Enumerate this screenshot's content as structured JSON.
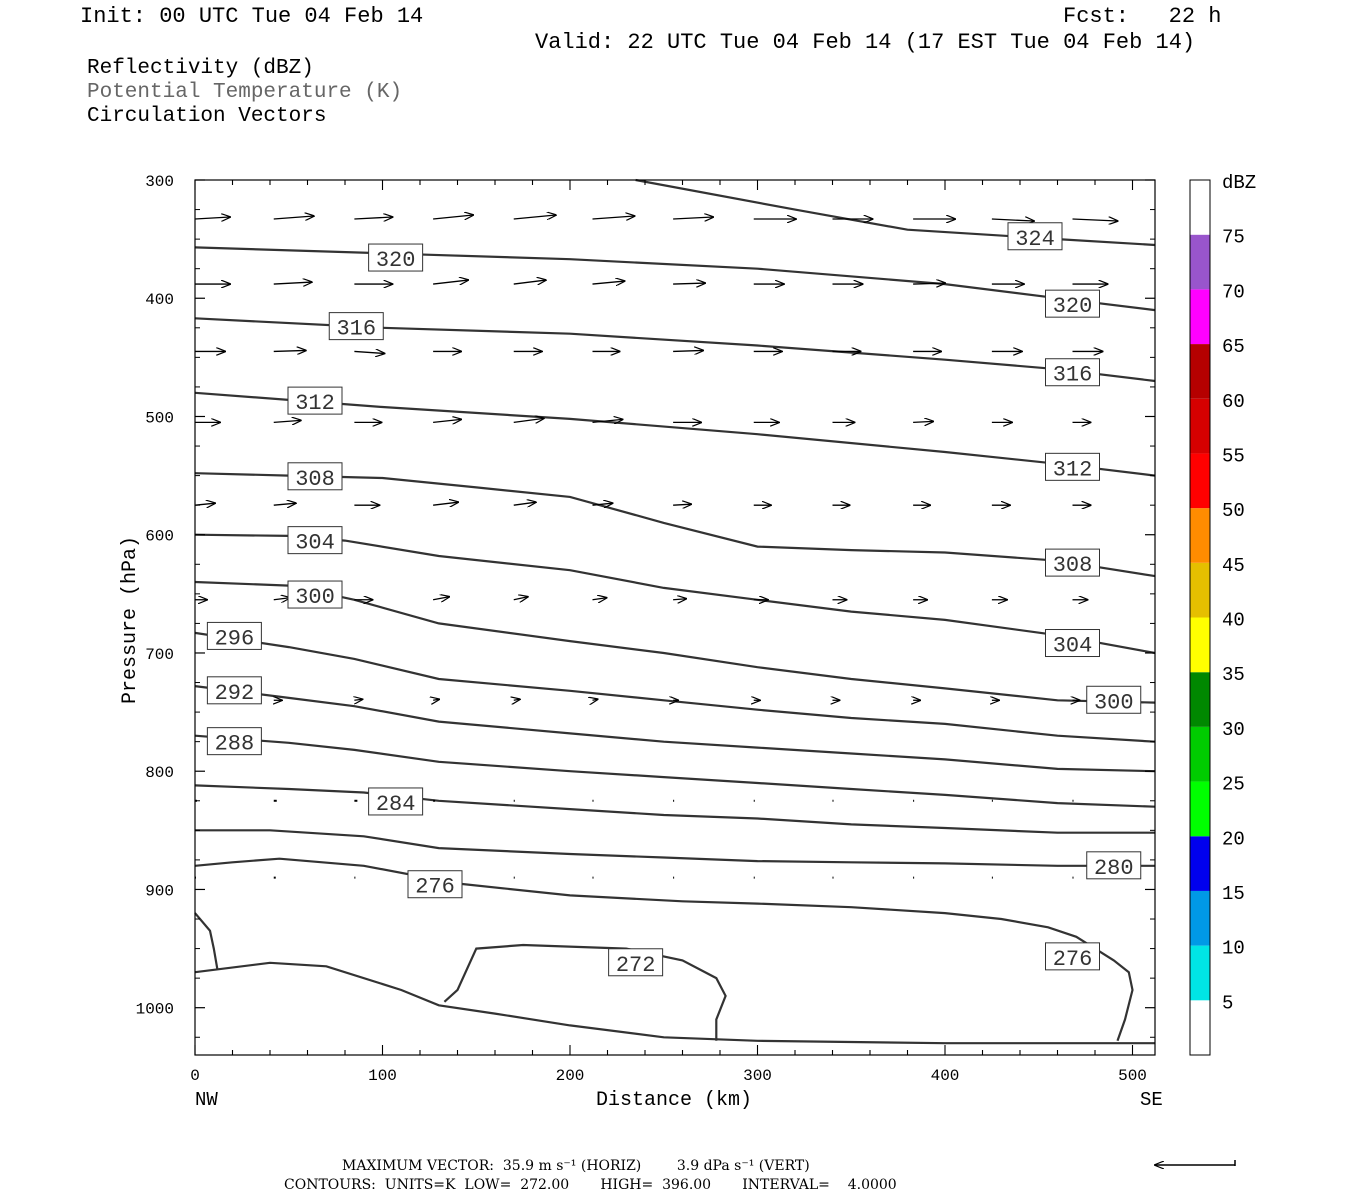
{
  "header": {
    "init": "Init: 00 UTC Tue 04 Feb 14",
    "fcst": "Fcst:   22 h",
    "valid": "Valid: 22 UTC Tue 04 Feb 14 (17 EST Tue 04 Feb 14)"
  },
  "legend": {
    "line1": "Reflectivity (dBZ)",
    "line2": "Potential Temperature (K)",
    "line3": "Circulation Vectors"
  },
  "footer": {
    "max_vector": "MAXIMUM VECTOR:  35.9 m s⁻¹ (HORIZ)        3.9 dPa s⁻¹ (VERT)",
    "contours": "CONTOURS:  UNITS=K  LOW=  272.00       HIGH=  396.00       INTERVAL=    4.0000"
  },
  "colors": {
    "contour": "#333333",
    "vector": "#000000",
    "frame": "#000000"
  },
  "chart_data": {
    "type": "line",
    "xlabel": "Distance (km)",
    "ylabel": "Pressure (hPa)",
    "xlim": [
      0,
      512
    ],
    "ylim": [
      1040,
      300
    ],
    "x_ticks": [
      0,
      100,
      200,
      300,
      400,
      500
    ],
    "y_ticks": [
      300,
      400,
      500,
      600,
      700,
      800,
      900,
      1000
    ],
    "x_end_labels": {
      "left": "NW",
      "right": "SE"
    },
    "colorbar": {
      "title": "dBZ",
      "levels": [
        5,
        10,
        15,
        20,
        25,
        30,
        35,
        40,
        45,
        50,
        55,
        60,
        65,
        70,
        75
      ],
      "colors": [
        "#ffffff",
        "#00e5e5",
        "#0099e6",
        "#0000ee",
        "#00ff00",
        "#00cc00",
        "#008800",
        "#ffff00",
        "#e5bf00",
        "#ff8c00",
        "#ff0000",
        "#d60000",
        "#b50000",
        "#ff00ff",
        "#9955cc",
        "#ffffff"
      ]
    },
    "series": [
      {
        "name": "324",
        "x": [
          235,
          320,
          380,
          460,
          512
        ],
        "y": [
          300,
          325,
          342,
          350,
          355
        ]
      },
      {
        "name": "320",
        "x": [
          0,
          100,
          200,
          300,
          400,
          460,
          512
        ],
        "y": [
          357,
          362,
          367,
          375,
          388,
          400,
          410
        ]
      },
      {
        "name": "316",
        "x": [
          0,
          100,
          200,
          300,
          400,
          460,
          512
        ],
        "y": [
          417,
          425,
          430,
          440,
          452,
          460,
          470
        ]
      },
      {
        "name": "312",
        "x": [
          0,
          100,
          200,
          300,
          400,
          460,
          512
        ],
        "y": [
          480,
          492,
          502,
          515,
          530,
          540,
          550
        ]
      },
      {
        "name": "308",
        "x": [
          0,
          50,
          100,
          150,
          200,
          250,
          300,
          350,
          400,
          460,
          512
        ],
        "y": [
          548,
          550,
          552,
          560,
          568,
          590,
          610,
          613,
          615,
          622,
          635
        ]
      },
      {
        "name": "304",
        "x": [
          0,
          50,
          80,
          130,
          200,
          250,
          300,
          350,
          400,
          460,
          512
        ],
        "y": [
          600,
          601,
          605,
          618,
          630,
          645,
          655,
          665,
          672,
          685,
          700
        ]
      },
      {
        "name": "300",
        "x": [
          0,
          50,
          85,
          130,
          200,
          250,
          300,
          350,
          400,
          460,
          512
        ],
        "y": [
          640,
          643,
          655,
          675,
          690,
          700,
          712,
          722,
          730,
          740,
          742
        ]
      },
      {
        "name": "296",
        "x": [
          0,
          50,
          85,
          130,
          200,
          250,
          300,
          350,
          400,
          460,
          512
        ],
        "y": [
          683,
          695,
          705,
          722,
          732,
          740,
          748,
          755,
          760,
          770,
          775
        ]
      },
      {
        "name": "292",
        "x": [
          0,
          50,
          85,
          130,
          200,
          250,
          300,
          350,
          400,
          460,
          512
        ],
        "y": [
          728,
          738,
          745,
          758,
          768,
          775,
          780,
          785,
          790,
          798,
          800
        ]
      },
      {
        "name": "288",
        "x": [
          0,
          50,
          85,
          130,
          200,
          250,
          300,
          350,
          400,
          460,
          512
        ],
        "y": [
          770,
          776,
          782,
          792,
          800,
          805,
          810,
          815,
          820,
          827,
          830
        ]
      },
      {
        "name": "284",
        "x": [
          0,
          50,
          90,
          130,
          200,
          250,
          300,
          350,
          400,
          460,
          512
        ],
        "y": [
          812,
          815,
          818,
          825,
          832,
          837,
          840,
          845,
          848,
          852,
          852
        ]
      },
      {
        "name": "280",
        "x": [
          0,
          40,
          90,
          130,
          200,
          250,
          300,
          350,
          400,
          460,
          512
        ],
        "y": [
          850,
          850,
          855,
          865,
          870,
          873,
          876,
          877,
          878,
          880,
          880
        ]
      },
      {
        "name": "276",
        "x": [
          0,
          20,
          45,
          90,
          140,
          200,
          260,
          300,
          350,
          400,
          430,
          455,
          470,
          480,
          490,
          498,
          500,
          496,
          492
        ],
        "y": [
          880,
          877,
          874,
          880,
          895,
          905,
          910,
          912,
          915,
          920,
          925,
          932,
          940,
          950,
          960,
          970,
          985,
          1010,
          1028
        ]
      },
      {
        "name": "272",
        "x": [
          133,
          140,
          150,
          175,
          230,
          260,
          278,
          283,
          278,
          278
        ],
        "y": [
          995,
          985,
          950,
          947,
          950,
          960,
          975,
          990,
          1010,
          1028
        ]
      },
      {
        "name": "272 (left)",
        "x": [
          0,
          8,
          10,
          12
        ],
        "y": [
          920,
          935,
          950,
          968
        ]
      },
      {
        "name": "ground",
        "x": [
          0,
          40,
          70,
          110,
          130,
          160,
          200,
          250,
          300,
          400,
          460,
          512
        ],
        "y": [
          970,
          962,
          965,
          985,
          998,
          1005,
          1015,
          1025,
          1028,
          1030,
          1030,
          1030
        ]
      }
    ],
    "contour_labels": [
      {
        "text": "324",
        "x": 448,
        "y": 348
      },
      {
        "text": "320",
        "x": 107,
        "y": 366
      },
      {
        "text": "320",
        "x": 468,
        "y": 405
      },
      {
        "text": "316",
        "x": 86,
        "y": 424
      },
      {
        "text": "316",
        "x": 468,
        "y": 463
      },
      {
        "text": "312",
        "x": 64,
        "y": 487
      },
      {
        "text": "312",
        "x": 468,
        "y": 543
      },
      {
        "text": "308",
        "x": 64,
        "y": 551
      },
      {
        "text": "308",
        "x": 468,
        "y": 624
      },
      {
        "text": "304",
        "x": 64,
        "y": 605
      },
      {
        "text": "304",
        "x": 468,
        "y": 692
      },
      {
        "text": "300",
        "x": 64,
        "y": 651
      },
      {
        "text": "300",
        "x": 490,
        "y": 740
      },
      {
        "text": "296",
        "x": 21,
        "y": 686
      },
      {
        "text": "292",
        "x": 21,
        "y": 732
      },
      {
        "text": "288",
        "x": 21,
        "y": 775
      },
      {
        "text": "284",
        "x": 107,
        "y": 826
      },
      {
        "text": "280",
        "x": 490,
        "y": 880
      },
      {
        "text": "276",
        "x": 128,
        "y": 896
      },
      {
        "text": "276",
        "x": 468,
        "y": 957
      },
      {
        "text": "272",
        "x": 235,
        "y": 962
      }
    ],
    "vector_rows": [
      {
        "p": 333,
        "x": [
          0,
          42,
          85,
          127,
          170,
          212,
          255,
          298,
          340,
          383,
          425,
          468
        ],
        "dx": [
          35,
          40,
          38,
          40,
          42,
          42,
          40,
          42,
          40,
          42,
          42,
          45
        ],
        "dy": [
          -2,
          -3,
          -2,
          -4,
          -4,
          -3,
          -2,
          0,
          0,
          0,
          2,
          2
        ]
      },
      {
        "p": 388,
        "x": [
          0,
          42,
          85,
          127,
          170,
          212,
          255,
          298,
          340,
          383,
          425,
          468
        ],
        "dx": [
          35,
          38,
          38,
          35,
          32,
          32,
          32,
          30,
          30,
          32,
          32,
          35
        ],
        "dy": [
          0,
          -2,
          0,
          -4,
          -4,
          -3,
          -1,
          0,
          0,
          -1,
          0,
          0
        ]
      },
      {
        "p": 445,
        "x": [
          0,
          42,
          85,
          127,
          170,
          212,
          255,
          298,
          340,
          383,
          425,
          468
        ],
        "dx": [
          30,
          32,
          30,
          28,
          28,
          27,
          30,
          28,
          28,
          28,
          30,
          30
        ],
        "dy": [
          0,
          -1,
          2,
          0,
          0,
          0,
          -1,
          0,
          0,
          0,
          0,
          0
        ]
      },
      {
        "p": 505,
        "x": [
          0,
          42,
          85,
          127,
          170,
          212,
          255,
          298,
          340,
          383,
          425,
          468
        ],
        "dx": [
          25,
          27,
          27,
          28,
          30,
          30,
          28,
          25,
          22,
          20,
          20,
          18
        ],
        "dy": [
          0,
          -2,
          0,
          -3,
          -4,
          -3,
          0,
          0,
          0,
          -1,
          0,
          0
        ]
      },
      {
        "p": 575,
        "x": [
          0,
          42,
          85,
          127,
          170,
          212,
          255,
          298,
          340,
          383,
          425,
          468
        ],
        "dx": [
          20,
          22,
          25,
          25,
          22,
          20,
          18,
          17,
          17,
          17,
          18,
          18
        ],
        "dy": [
          -2,
          -2,
          0,
          -3,
          -3,
          -2,
          -1,
          0,
          0,
          0,
          0,
          0
        ]
      },
      {
        "p": 655,
        "x": [
          0,
          42,
          85,
          127,
          170,
          212,
          255,
          298,
          340,
          383,
          425,
          468
        ],
        "dx": [
          12,
          16,
          18,
          16,
          14,
          14,
          13,
          14,
          14,
          14,
          15,
          15
        ],
        "dy": [
          0,
          -2,
          0,
          -3,
          -3,
          -2,
          -1,
          0,
          0,
          0,
          0,
          0
        ]
      },
      {
        "p": 740,
        "x": [
          0,
          42,
          85,
          127,
          170,
          212,
          255,
          298,
          340,
          383,
          425,
          468
        ],
        "dx": [
          0,
          8,
          8,
          6,
          6,
          5,
          5,
          6,
          7,
          7,
          7,
          7
        ],
        "dy": [
          0,
          0,
          -1,
          -1,
          -1,
          -1,
          0,
          0,
          0,
          0,
          0,
          0
        ]
      },
      {
        "p": 825,
        "x": [
          0,
          42,
          85,
          127,
          170,
          212,
          255,
          298,
          340,
          383,
          425,
          468
        ],
        "dx": [
          2,
          3,
          3,
          2,
          1,
          1,
          1,
          1,
          1,
          1,
          1,
          1
        ],
        "dy": [
          0,
          0,
          0,
          0,
          0,
          0,
          0,
          0,
          0,
          0,
          0,
          0
        ]
      },
      {
        "p": 890,
        "x": [
          0,
          42,
          85,
          127,
          170,
          212,
          255,
          298,
          340,
          383,
          425,
          468
        ],
        "dx": [
          1,
          2,
          1,
          1,
          1,
          1,
          1,
          1,
          1,
          1,
          1,
          1
        ],
        "dy": [
          0,
          0,
          0,
          0,
          0,
          0,
          0,
          0,
          0,
          0,
          0,
          0
        ]
      }
    ],
    "reference_vector": {
      "direction": "left",
      "length": "35.9 m s-1"
    }
  }
}
